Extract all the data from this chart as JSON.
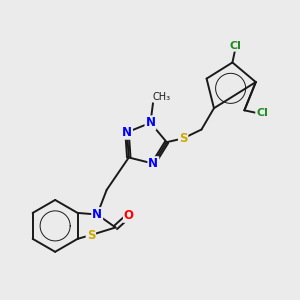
{
  "background_color": "#ebebeb",
  "atom_colors": {
    "N": "#0000ff",
    "S": "#ccaa00",
    "O": "#ff0000",
    "Cl": "#228B22"
  },
  "bond_color": "#1a1a1a",
  "figsize": [
    3.0,
    3.0
  ],
  "dpi": 100,
  "lw": 1.4,
  "fs": 8.5
}
